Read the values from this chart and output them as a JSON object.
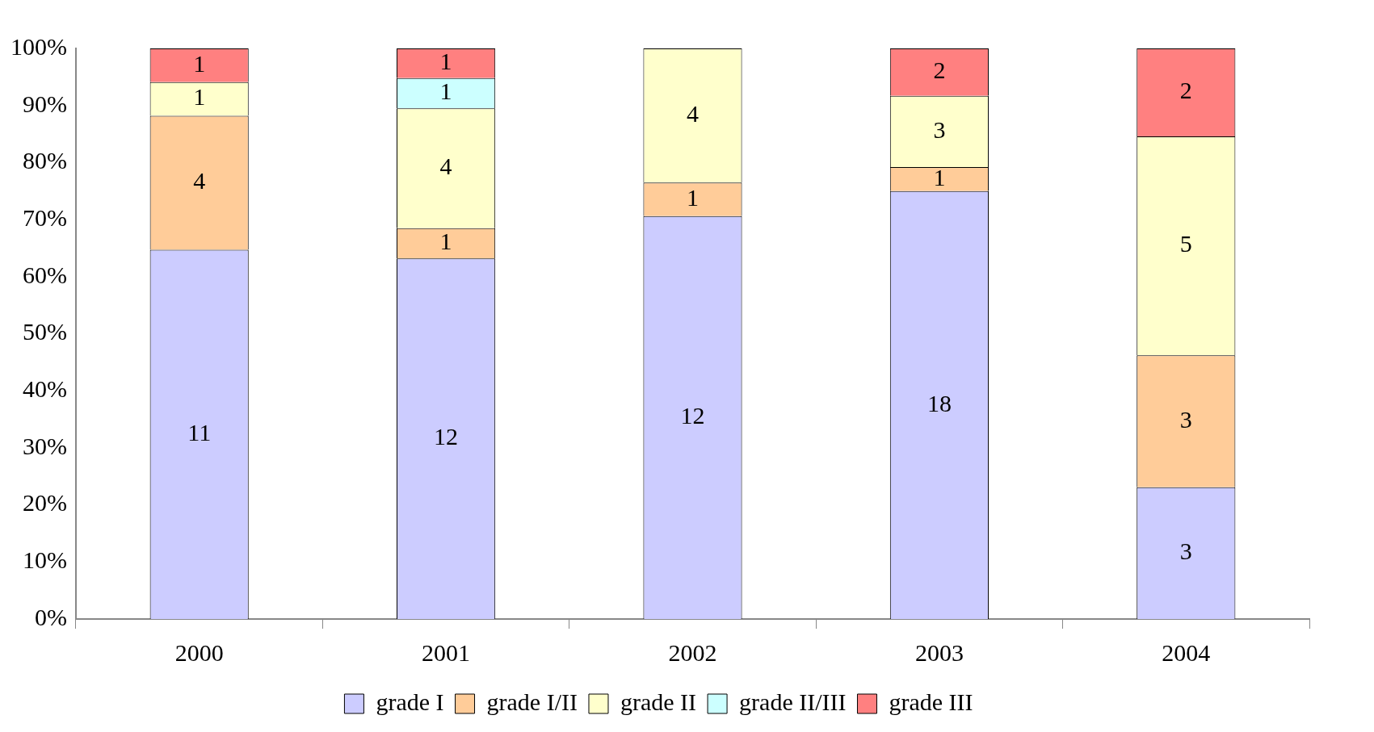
{
  "chart_data": {
    "type": "bar",
    "stacked": true,
    "categories": [
      "2000",
      "2001",
      "2002",
      "2003",
      "2004"
    ],
    "series": [
      {
        "name": "grade I",
        "color": "#ccccff",
        "values": [
          64.7,
          63.2,
          70.6,
          75,
          23.1
        ]
      },
      {
        "name": "grade I/II",
        "color": "#ffcc99",
        "values": [
          23.5,
          5.3,
          5.9,
          4.2,
          23.1
        ]
      },
      {
        "name": "grade II",
        "color": "#ffffcc",
        "values": [
          5.9,
          21.0,
          23.5,
          12.5,
          38.4
        ]
      },
      {
        "name": "grade II/III",
        "color": "#ccffff",
        "values": [
          null,
          5.3,
          null,
          null,
          null
        ]
      },
      {
        "name": "grade III",
        "color": "#ff8080",
        "values": [
          5.9,
          5.2,
          null,
          8.3,
          15.4
        ]
      }
    ],
    "annotations": [
      "11",
      "4",
      "1",
      "1",
      "12",
      "1",
      "4",
      "1",
      "1",
      "12",
      "1",
      "4",
      "18",
      "1",
      "3",
      "2",
      "3",
      "3",
      "5",
      "2"
    ],
    "ylim": [
      0,
      100
    ],
    "yticks": [
      {
        "value": 0,
        "label": "0%"
      },
      {
        "value": 10,
        "label": "10%"
      },
      {
        "value": 20,
        "label": "20%"
      },
      {
        "value": 30,
        "label": "30%"
      },
      {
        "value": 40,
        "label": "40%"
      },
      {
        "value": 50,
        "label": "50%"
      },
      {
        "value": 60,
        "label": "60%"
      },
      {
        "value": 70,
        "label": "70%"
      },
      {
        "value": 80,
        "label": "80%"
      },
      {
        "value": 90,
        "label": "90%"
      },
      {
        "value": 100,
        "label": "100%"
      }
    ],
    "grid": false,
    "legend": "bottom"
  }
}
